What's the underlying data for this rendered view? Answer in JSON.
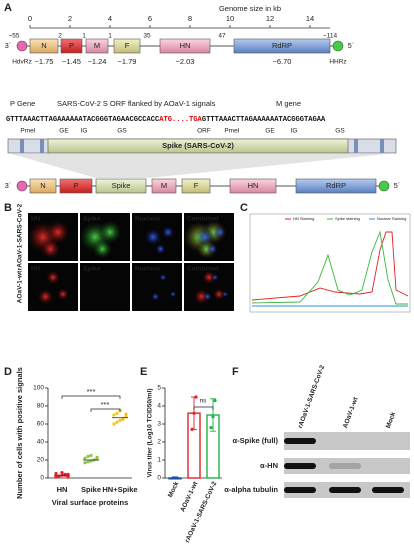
{
  "panel_labels": [
    "A",
    "B",
    "C",
    "D",
    "E",
    "F"
  ],
  "genome": {
    "title": "Genome size in kb",
    "scale_lim": [
      0,
      15
    ],
    "scale_ticks": [
      0,
      2,
      4,
      6,
      8,
      10,
      12,
      14
    ],
    "end3": "3´",
    "end5": "5´",
    "ribozymes": [
      "HdvRz",
      "HHRz"
    ],
    "genes": [
      {
        "label": "N",
        "size": "~1.75"
      },
      {
        "label": "P",
        "size": "~1.45"
      },
      {
        "label": "M",
        "size": "~1.24"
      },
      {
        "label": "F",
        "size": "~1.79"
      },
      {
        "label": "HN",
        "size": "~2.03"
      },
      {
        "label": "RdRP",
        "size": "~6.70"
      }
    ],
    "intergenic": [
      "~55",
      "2",
      "1",
      "1",
      "35",
      "47",
      "~114"
    ]
  },
  "insert": {
    "left_gene": "P Gene",
    "title": "SARS-CoV-2 S ORF flanked by AOaV-1 signals",
    "right_gene": "M gene",
    "sequence": [
      "GTTTAAACTTAGAAAAAATACGGGTAGAACGCCACC",
      "ATG....TGA",
      "GTTTAAACTTAGAAAAAATACGGGTAGAA"
    ],
    "features": [
      "PmeI",
      "GE",
      "IG",
      "GS",
      "ORF",
      "PmeI",
      "GE",
      "IG",
      "GS"
    ],
    "cassette": "Spike (SARS-CoV-2)"
  },
  "recombinant": {
    "genes": [
      "N",
      "P",
      "Spike",
      "M",
      "F",
      "HN",
      "RdRP"
    ]
  },
  "microscopy": {
    "rows": [
      "rAOaV-1-SARS-CoV-2",
      "AOaV-1-wt"
    ],
    "channels": [
      "HN",
      "Spike",
      "Nucleus",
      "Combined"
    ]
  },
  "profile": {
    "legend": [
      "HN Staining",
      "Spike staining",
      "Nuclear Staining"
    ]
  },
  "chart_data": [
    {
      "type": "strip",
      "ylabel": "Number of cells with positive signals",
      "xlabel": "Viral surface proteins",
      "categories": [
        "HN",
        "Spike",
        "HN+Spike"
      ],
      "colors": [
        "#e8202a",
        "#8dc63f",
        "#f5c518"
      ],
      "values": [
        [
          1,
          2,
          3,
          3,
          4,
          5,
          2,
          6,
          4,
          1
        ],
        [
          17,
          18,
          19,
          20,
          21,
          22,
          24,
          25,
          20,
          23
        ],
        [
          60,
          62,
          64,
          66,
          68,
          70,
          72,
          75,
          65,
          71
        ]
      ],
      "medians": [
        3,
        20,
        67
      ],
      "ylim": [
        0,
        100
      ],
      "yticks": [
        0,
        20,
        40,
        60,
        80,
        100
      ],
      "annotations": [
        "***",
        "***"
      ]
    },
    {
      "type": "bar",
      "ylabel": "Virus titer (Log10 TCID50/ml)",
      "categories": [
        "Mock",
        "AOaV-1-wt",
        "rAOaV-1-SARS-CoV-2"
      ],
      "colors": [
        "#1f4fa0",
        "#e8202a",
        "#1fb34a"
      ],
      "values": [
        0,
        3.6,
        3.5
      ],
      "errors": [
        0,
        0.9,
        0.9
      ],
      "points": [
        [
          0,
          0,
          0
        ],
        [
          2.7,
          3.6,
          4.5
        ],
        [
          2.8,
          3.4,
          4.3
        ]
      ],
      "ylim": [
        0,
        5
      ],
      "yticks": [
        0,
        1,
        2,
        3,
        4,
        5
      ],
      "annotation": "ns"
    }
  ],
  "blot": {
    "lanes": [
      "rAOaV-1-SARS-CoV-2",
      "AOaV-1-wt",
      "Mock"
    ],
    "antibodies": [
      "α-Spike (full)",
      "α-HN",
      "α-alpha tubulin"
    ]
  }
}
